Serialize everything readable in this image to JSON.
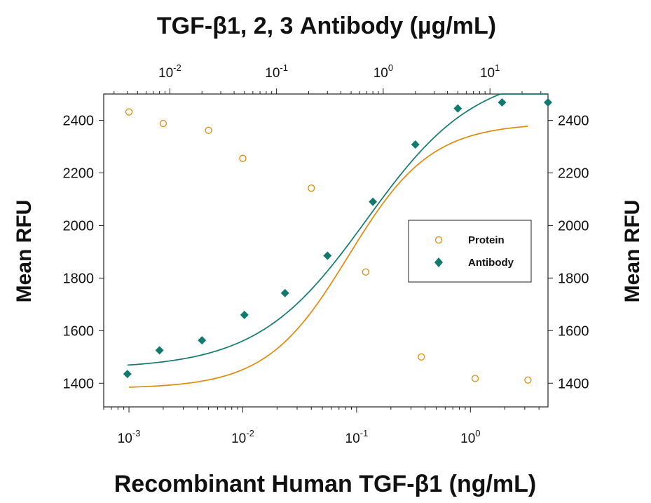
{
  "chart_data": {
    "type": "scatter",
    "title": "TGF-β1, 2, 3 Antibody (µg/mL)",
    "xlabel": "Recombinant Human TGF-β1 (ng/mL)",
    "ylabel_left": "Mean RFU",
    "ylabel_right": "Mean RFU",
    "x_scale": "log",
    "xlim": [
      0.0006,
      4.8
    ],
    "ylim": [
      1310,
      2500
    ],
    "bottom_ticks": [
      {
        "value": 0.001,
        "base": "10",
        "exp": "-3"
      },
      {
        "value": 0.01,
        "base": "10",
        "exp": "-2"
      },
      {
        "value": 0.1,
        "base": "10",
        "exp": "-1"
      },
      {
        "value": 1,
        "base": "10",
        "exp": "0"
      }
    ],
    "top_axis": {
      "unit": "µg/mL",
      "xlim": [
        0.0024,
        35
      ],
      "ticks": [
        {
          "value": 0.01,
          "base": "10",
          "exp": "-2"
        },
        {
          "value": 0.1,
          "base": "10",
          "exp": "-1"
        },
        {
          "value": 1,
          "base": "10",
          "exp": "0"
        },
        {
          "value": 10,
          "base": "10",
          "exp": "1"
        }
      ]
    },
    "y_ticks": [
      1400,
      1600,
      1800,
      2000,
      2200,
      2400
    ],
    "grid": false,
    "legend_position": "right",
    "series": [
      {
        "name": "Protein",
        "axis": "bottom",
        "marker": "open-circle",
        "color": "#e08a0b",
        "x": [
          0.001,
          0.002,
          0.005,
          0.01,
          0.04,
          0.12,
          0.37,
          1.1,
          3.2
        ],
        "y": [
          2432,
          2388,
          2362,
          2255,
          2142,
          1823,
          1500,
          1418,
          1412
        ],
        "fit": {
          "bottom": 1380,
          "top": 2390,
          "ec50": 0.085,
          "hill": 1.2,
          "x_from": 0.001,
          "x_to": 3.2
        }
      },
      {
        "name": "Antibody",
        "axis": "top",
        "marker": "filled-diamond",
        "color": "#117a6e",
        "x": [
          0.004,
          0.008,
          0.02,
          0.05,
          0.12,
          0.3,
          0.8,
          2.0,
          5.0,
          13.0,
          35.0
        ],
        "y": [
          1435,
          1525,
          1563,
          1660,
          1743,
          1885,
          2090,
          2308,
          2445,
          2468,
          2468
        ],
        "fit": {
          "bottom": 1455,
          "top": 2590,
          "ec50": 0.7,
          "hill": 0.85,
          "x_from": 0.004,
          "x_to": 35.0
        }
      }
    ]
  }
}
